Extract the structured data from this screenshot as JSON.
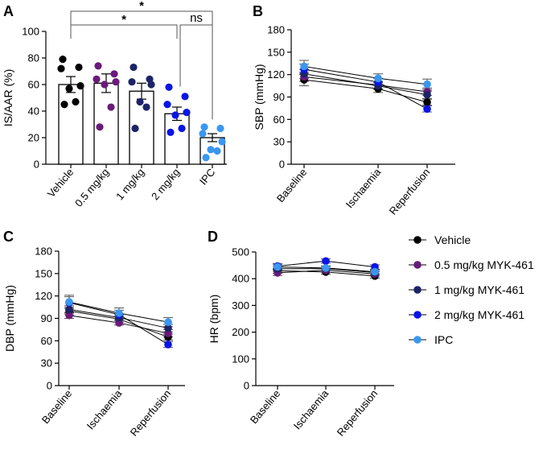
{
  "chart_data": [
    {
      "panel": "A",
      "type": "bar",
      "ylabel": "IS/AAR (%)",
      "ylim": [
        0,
        100
      ],
      "yticks": [
        0,
        20,
        40,
        60,
        80,
        100
      ],
      "categories": [
        "Vehicle",
        "0.5 mg/kg",
        "1 mg/kg",
        "2 mg/kg",
        "IPC"
      ],
      "colors": [
        "#000000",
        "#6a1a7a",
        "#1c2466",
        "#0a14e6",
        "#3a97f0"
      ],
      "means": [
        60,
        61,
        55,
        38,
        20
      ],
      "sem": [
        6,
        7,
        6,
        5,
        3
      ],
      "points": [
        [
          79,
          73,
          72,
          59,
          57,
          47,
          45
        ],
        [
          74,
          68,
          64,
          62,
          60,
          43,
          28
        ],
        [
          73,
          64,
          62,
          60,
          47,
          43,
          27
        ],
        [
          58,
          51,
          45,
          39,
          37,
          27,
          24
        ],
        [
          28,
          27,
          23,
          17,
          11,
          10,
          5
        ]
      ],
      "significance": [
        {
          "from": 0,
          "to": 4,
          "label": "*"
        },
        {
          "from": 0,
          "to": 3,
          "label": "*"
        },
        {
          "from": 3,
          "to": 4,
          "label": "ns"
        }
      ]
    },
    {
      "panel": "B",
      "type": "line",
      "ylabel": "SBP (mmHg)",
      "ylim": [
        0,
        180
      ],
      "yticks": [
        0,
        30,
        60,
        90,
        120,
        150,
        180
      ],
      "categories": [
        "Baseline",
        "Ischaemia",
        "Reperfusion"
      ],
      "series": [
        {
          "values": [
            113,
            101,
            83
          ],
          "sem": [
            8,
            5,
            4
          ]
        },
        {
          "values": [
            117,
            106,
            97
          ],
          "sem": [
            6,
            5,
            5
          ]
        },
        {
          "values": [
            121,
            105,
            93
          ],
          "sem": [
            6,
            5,
            5
          ]
        },
        {
          "values": [
            127,
            110,
            74
          ],
          "sem": [
            7,
            5,
            4
          ]
        },
        {
          "values": [
            131,
            115,
            107
          ],
          "sem": [
            8,
            6,
            7
          ]
        }
      ]
    },
    {
      "panel": "C",
      "type": "line",
      "ylabel": "DBP (mmHg)",
      "ylim": [
        0,
        180
      ],
      "yticks": [
        0,
        30,
        60,
        90,
        120,
        150,
        180
      ],
      "categories": [
        "Baseline",
        "Ischaemia",
        "Reperfusion"
      ],
      "series": [
        {
          "values": [
            100,
            89,
            65
          ],
          "sem": [
            5,
            4,
            4
          ]
        },
        {
          "values": [
            94,
            84,
            70
          ],
          "sem": [
            4,
            3,
            5
          ]
        },
        {
          "values": [
            102,
            91,
            77
          ],
          "sem": [
            5,
            4,
            5
          ]
        },
        {
          "values": [
            111,
            95,
            55
          ],
          "sem": [
            8,
            6,
            4
          ]
        },
        {
          "values": [
            112,
            97,
            85
          ],
          "sem": [
            9,
            7,
            6
          ]
        }
      ]
    },
    {
      "panel": "D",
      "type": "line",
      "ylabel": "HR (bpm)",
      "ylim": [
        0,
        500
      ],
      "yticks": [
        0,
        100,
        200,
        300,
        400,
        500
      ],
      "categories": [
        "Baseline",
        "Ischaemia",
        "Reperfusion"
      ],
      "series": [
        {
          "values": [
            430,
            425,
            410
          ],
          "sem": [
            10,
            8,
            8
          ]
        },
        {
          "values": [
            422,
            432,
            418
          ],
          "sem": [
            10,
            8,
            8
          ]
        },
        {
          "values": [
            437,
            438,
            423
          ],
          "sem": [
            10,
            8,
            8
          ]
        },
        {
          "values": [
            447,
            466,
            444
          ],
          "sem": [
            10,
            8,
            8
          ]
        },
        {
          "values": [
            444,
            440,
            426
          ],
          "sem": [
            10,
            8,
            8
          ]
        }
      ]
    }
  ],
  "line_colors": [
    "#000000",
    "#6a1a7a",
    "#1c2466",
    "#0a14e6",
    "#3a97f0"
  ],
  "legend": [
    {
      "label": "Vehicle",
      "color": "#000000"
    },
    {
      "label": "0.5 mg/kg MYK-461",
      "color": "#6a1a7a"
    },
    {
      "label": "1 mg/kg MYK-461",
      "color": "#1c2466"
    },
    {
      "label": "2 mg/kg MYK-461",
      "color": "#0a14e6"
    },
    {
      "label": "IPC",
      "color": "#3a97f0"
    }
  ]
}
